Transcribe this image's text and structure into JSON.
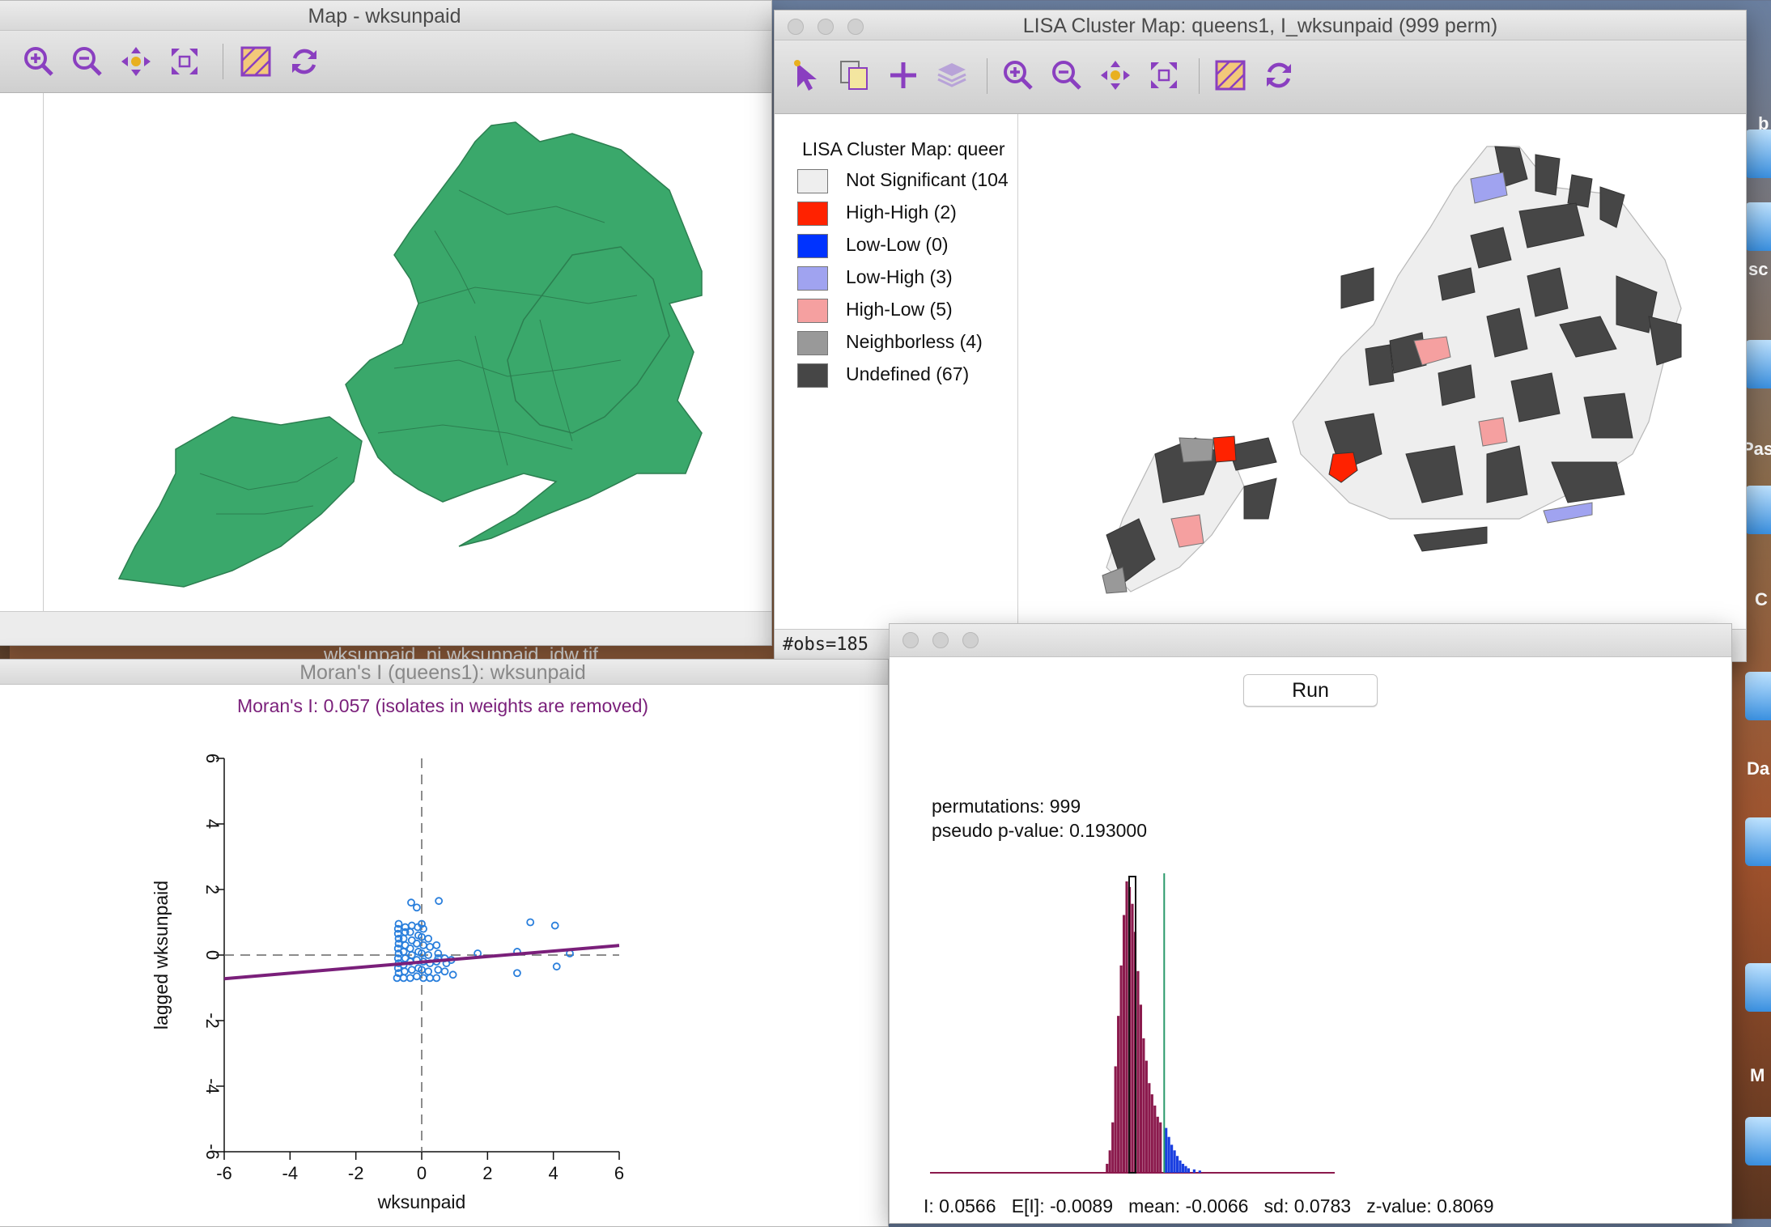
{
  "map_window": {
    "title": "Map - wksunpaid",
    "toolbar_icons": [
      "zoom-in-icon",
      "zoom-out-icon",
      "pan-icon",
      "fit-extent-icon",
      "select-icon",
      "refresh-icon"
    ]
  },
  "lisa_window": {
    "title": "LISA Cluster Map: queens1, I_wksunpaid (999 perm)",
    "toolbar_icons": [
      "pointer-icon",
      "copy-icon",
      "plus-icon",
      "layers-icon",
      "zoom-in-icon",
      "zoom-out-icon",
      "pan-icon",
      "fit-extent-icon",
      "select-icon",
      "refresh-icon"
    ],
    "legend": {
      "title": "LISA Cluster Map: queer",
      "items": [
        {
          "label": "Not Significant (104",
          "color": "#eeeeee"
        },
        {
          "label": "High-High (2)",
          "color": "#ff2200"
        },
        {
          "label": "Low-Low (0)",
          "color": "#0033ff"
        },
        {
          "label": "Low-High (3)",
          "color": "#a0a3f0"
        },
        {
          "label": "High-Low (5)",
          "color": "#f5a0a0"
        },
        {
          "label": "Neighborless (4)",
          "color": "#999999"
        },
        {
          "label": "Undefined (67)",
          "color": "#464646"
        }
      ]
    },
    "status": "#obs=185  p"
  },
  "moran_window": {
    "title": "Moran's I (queens1): wksunpaid",
    "subtitle": "Moran's I: 0.057 (isolates in weights are removed)",
    "subtitle_color": "#7a1f7a"
  },
  "perm_window": {
    "run_label": "Run",
    "permutations_text": "permutations: 999",
    "pvalue_text": "pseudo p-value: 0.193000",
    "stats_text": "I: 0.0566   E[I]: -0.0089   mean: -0.0066   sd: 0.0783   z-value: 0.8069"
  },
  "background": {
    "fragment_text": "wksunpaid_nj     wksunpaid_idw.tif"
  },
  "dock": {
    "labels": [
      "b",
      "sc",
      "Pas",
      "C",
      "Da",
      "M"
    ]
  },
  "colors": {
    "map_fill": "#3aa86b",
    "undefined": "#464646",
    "not_significant": "#eeeeee",
    "regression_line": "#7a1f7a",
    "points": "#2a7fdc",
    "hist_below": "#8b1a4d",
    "hist_above": "#1a3fe0"
  },
  "chart_data": [
    {
      "type": "scatter",
      "title": "",
      "xlabel": "wksunpaid",
      "ylabel": "lagged wksunpaid",
      "xlim": [
        -6,
        6
      ],
      "ylim": [
        -6,
        6
      ],
      "xticks": [
        "-6",
        "-4",
        "-2",
        "0",
        "2",
        "4",
        "6"
      ],
      "yticks": [
        "-6",
        "-4",
        "-2",
        "0",
        "2",
        "4",
        "6"
      ],
      "regression": {
        "slope": 0.057,
        "intercept": -0.05
      },
      "points": [
        [
          -0.75,
          -0.7
        ],
        [
          -0.7,
          -0.55
        ],
        [
          -0.72,
          -0.4
        ],
        [
          -0.7,
          -0.25
        ],
        [
          -0.72,
          -0.1
        ],
        [
          -0.7,
          0.05
        ],
        [
          -0.72,
          0.2
        ],
        [
          -0.7,
          0.35
        ],
        [
          -0.7,
          0.5
        ],
        [
          -0.72,
          0.65
        ],
        [
          -0.72,
          0.8
        ],
        [
          -0.7,
          0.95
        ],
        [
          -0.55,
          -0.7
        ],
        [
          -0.52,
          -0.5
        ],
        [
          -0.55,
          -0.3
        ],
        [
          -0.5,
          -0.1
        ],
        [
          -0.55,
          0.1
        ],
        [
          -0.5,
          0.3
        ],
        [
          -0.55,
          0.5
        ],
        [
          -0.5,
          0.7
        ],
        [
          -0.5,
          0.85
        ],
        [
          -0.35,
          -0.7
        ],
        [
          -0.3,
          -0.45
        ],
        [
          -0.35,
          -0.2
        ],
        [
          -0.3,
          0.0
        ],
        [
          -0.35,
          0.2
        ],
        [
          -0.3,
          0.45
        ],
        [
          -0.35,
          0.7
        ],
        [
          -0.3,
          0.9
        ],
        [
          -0.32,
          1.6
        ],
        [
          -0.15,
          -0.65
        ],
        [
          -0.1,
          -0.4
        ],
        [
          -0.15,
          -0.15
        ],
        [
          -0.1,
          0.1
        ],
        [
          -0.15,
          0.35
        ],
        [
          -0.1,
          0.6
        ],
        [
          -0.12,
          0.85
        ],
        [
          -0.15,
          1.45
        ],
        [
          0.05,
          -0.7
        ],
        [
          0.0,
          -0.45
        ],
        [
          0.05,
          -0.2
        ],
        [
          0.0,
          0.05
        ],
        [
          0.05,
          0.3
        ],
        [
          0.0,
          0.55
        ],
        [
          0.05,
          0.8
        ],
        [
          0.0,
          0.95
        ],
        [
          0.25,
          -0.7
        ],
        [
          0.2,
          -0.5
        ],
        [
          0.25,
          -0.25
        ],
        [
          0.2,
          0.0
        ],
        [
          0.25,
          0.25
        ],
        [
          0.2,
          0.5
        ],
        [
          0.45,
          -0.7
        ],
        [
          0.5,
          -0.45
        ],
        [
          0.45,
          -0.2
        ],
        [
          0.5,
          0.05
        ],
        [
          0.45,
          0.3
        ],
        [
          0.5,
          -0.1
        ],
        [
          0.52,
          1.65
        ],
        [
          0.7,
          -0.5
        ],
        [
          0.75,
          -0.25
        ],
        [
          0.7,
          -0.1
        ],
        [
          0.9,
          -0.15
        ],
        [
          0.95,
          -0.6
        ],
        [
          1.7,
          0.05
        ],
        [
          2.9,
          0.1
        ],
        [
          2.9,
          -0.55
        ],
        [
          3.3,
          1.0
        ],
        [
          4.05,
          0.9
        ],
        [
          4.1,
          -0.35
        ],
        [
          4.5,
          0.05
        ]
      ]
    },
    {
      "type": "bar",
      "title": "",
      "xlabel": "",
      "ylabel": "",
      "x_range": [
        -0.36,
        0.36
      ],
      "observed_I": 0.0566,
      "bins": [
        {
          "x": -0.045,
          "count": 8,
          "side": "below"
        },
        {
          "x": -0.04,
          "count": 20,
          "side": "below"
        },
        {
          "x": -0.035,
          "count": 45,
          "side": "below"
        },
        {
          "x": -0.03,
          "count": 95,
          "side": "below"
        },
        {
          "x": -0.025,
          "count": 140,
          "side": "below"
        },
        {
          "x": -0.02,
          "count": 185,
          "side": "below"
        },
        {
          "x": -0.015,
          "count": 230,
          "side": "below"
        },
        {
          "x": -0.01,
          "count": 260,
          "side": "below"
        },
        {
          "x": -0.005,
          "count": 255,
          "side": "below"
        },
        {
          "x": 0.0,
          "count": 240,
          "side": "below"
        },
        {
          "x": 0.005,
          "count": 215,
          "side": "below"
        },
        {
          "x": 0.01,
          "count": 180,
          "side": "below"
        },
        {
          "x": 0.015,
          "count": 150,
          "side": "below"
        },
        {
          "x": 0.02,
          "count": 120,
          "side": "below"
        },
        {
          "x": 0.025,
          "count": 100,
          "side": "below"
        },
        {
          "x": 0.03,
          "count": 80,
          "side": "below"
        },
        {
          "x": 0.035,
          "count": 70,
          "side": "below"
        },
        {
          "x": 0.04,
          "count": 60,
          "side": "below"
        },
        {
          "x": 0.045,
          "count": 50,
          "side": "below"
        },
        {
          "x": 0.05,
          "count": 45,
          "side": "below"
        },
        {
          "x": 0.06,
          "count": 40,
          "side": "above"
        },
        {
          "x": 0.065,
          "count": 32,
          "side": "above"
        },
        {
          "x": 0.07,
          "count": 25,
          "side": "above"
        },
        {
          "x": 0.075,
          "count": 20,
          "side": "above"
        },
        {
          "x": 0.08,
          "count": 15,
          "side": "above"
        },
        {
          "x": 0.085,
          "count": 11,
          "side": "above"
        },
        {
          "x": 0.09,
          "count": 8,
          "side": "above"
        },
        {
          "x": 0.095,
          "count": 6,
          "side": "above"
        },
        {
          "x": 0.1,
          "count": 4,
          "side": "above"
        },
        {
          "x": 0.11,
          "count": 3,
          "side": "above"
        },
        {
          "x": 0.12,
          "count": 2,
          "side": "above"
        }
      ]
    }
  ]
}
